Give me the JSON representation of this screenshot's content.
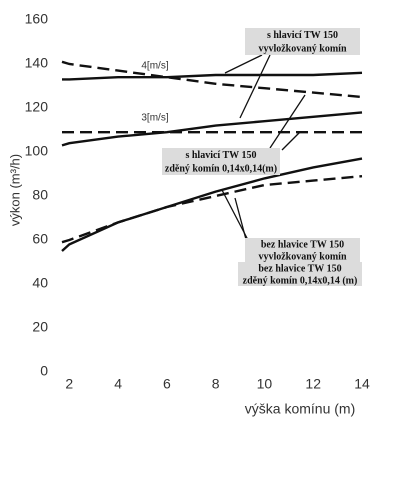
{
  "chart_data": {
    "type": "line",
    "x_label": "výška komínu (m)",
    "y_label": "výkon (m³/h)",
    "xlim": [
      1.7,
      14
    ],
    "xticks": [
      2,
      4,
      6,
      8,
      10,
      12,
      14
    ],
    "ylim": [
      0,
      160
    ],
    "yticks": [
      0,
      20,
      40,
      60,
      80,
      100,
      120,
      140,
      160
    ],
    "grid": false,
    "x": [
      1.7,
      2,
      4,
      6,
      8,
      10,
      12,
      14
    ],
    "series": [
      {
        "color": "#111111",
        "dashed": false,
        "values": [
          133,
          133,
          134,
          134,
          135,
          135,
          135,
          136
        ]
      },
      {
        "color": "#111111",
        "dashed": false,
        "values": [
          103,
          104,
          107,
          109,
          112,
          114,
          116,
          118
        ]
      },
      {
        "color": "#111111",
        "dashed": true,
        "values": [
          141,
          140,
          137,
          134,
          131,
          129,
          127,
          125
        ]
      },
      {
        "color": "#111111",
        "dashed": true,
        "values": [
          109,
          109,
          109,
          109,
          109,
          109,
          109,
          109
        ]
      },
      {
        "color": "#111111",
        "dashed": false,
        "values": [
          55,
          58,
          68,
          75,
          82,
          88,
          93,
          97
        ]
      },
      {
        "color": "#111111",
        "dashed": true,
        "values": [
          59,
          60,
          68,
          75,
          80,
          85,
          87,
          89
        ]
      }
    ],
    "annotations": [
      {
        "text": "4[m/s]"
      },
      {
        "text": "3[m/s]"
      },
      {
        "lines": [
          "s hlavicí TW 150",
          "vyvložkovaný komín"
        ]
      },
      {
        "lines": [
          "s hlavicí TW 150",
          "zděný komín 0,14x0,14(m)"
        ]
      },
      {
        "lines": [
          "bez hlavice TW 150",
          "vyvložkovaný komín"
        ]
      },
      {
        "lines": [
          "bez hlavice TW 150",
          "zděný komín 0,14x0,14 (m)"
        ]
      }
    ]
  }
}
